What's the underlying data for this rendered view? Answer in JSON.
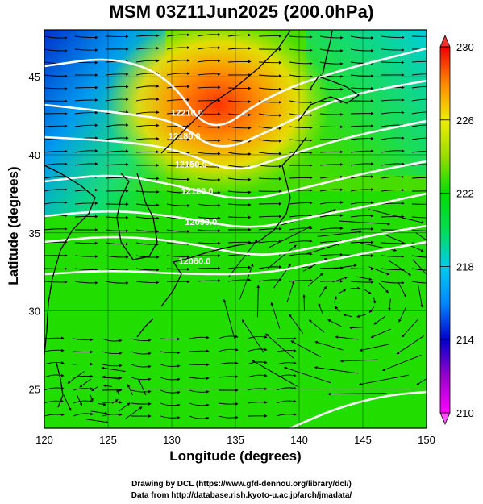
{
  "title": "MSM 03Z11Jun2025 (200.0hPa)",
  "credits": {
    "line1": "Drawing by DCL (https://www.gfd-dennou.org/library/dcl/)",
    "line2": "Data from http://database.rish.kyoto-u.ac.jp/arch/jmadata/"
  },
  "map": {
    "xlabel": "Longitude (degrees)",
    "ylabel": "Latitude  (degrees)",
    "lon_range": [
      120,
      150
    ],
    "lat_range": [
      22.5,
      48
    ],
    "lon_ticks": [
      120,
      125,
      130,
      135,
      140,
      145,
      150
    ],
    "lat_ticks": [
      25,
      30,
      35,
      40,
      45
    ],
    "gridlines": true,
    "contour_labels": [
      {
        "text": "12210.0",
        "lon": 131.2,
        "lat": 42.5
      },
      {
        "text": "12180.0",
        "lon": 131.0,
        "lat": 41.0
      },
      {
        "text": "12150.0",
        "lon": 131.5,
        "lat": 39.2
      },
      {
        "text": "12120.0",
        "lon": 132.0,
        "lat": 37.5
      },
      {
        "text": "12090.0",
        "lon": 132.3,
        "lat": 35.5
      },
      {
        "text": "12060.0",
        "lon": 131.8,
        "lat": 33.0
      }
    ],
    "colorbar": {
      "min": 210,
      "max": 230,
      "tick_labels": [
        "230",
        "226",
        "222",
        "218",
        "214",
        "210"
      ],
      "colors": [
        "#ff00ff",
        "#0000cc",
        "#0099ff",
        "#00ddcc",
        "#00dd00",
        "#66dd00",
        "#ccee00",
        "#ffcc00",
        "#ff6600",
        "#ee0000"
      ]
    }
  }
}
